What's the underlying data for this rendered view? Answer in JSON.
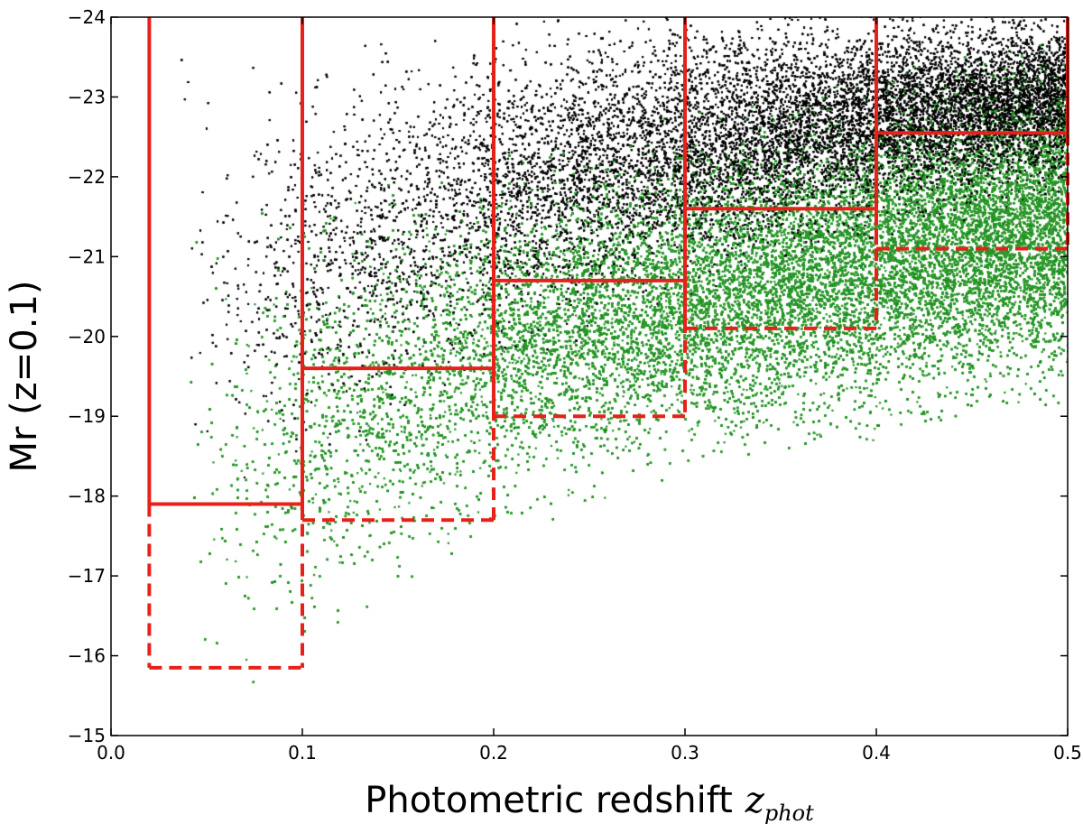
{
  "chart_data": {
    "type": "scatter",
    "xlabel": "Photometric redshift",
    "xlabel_symbol": "z",
    "xlabel_subscript": "phot",
    "ylabel": "Mr (z=0.1)",
    "xlim": [
      0.0,
      0.5
    ],
    "ylim": [
      -15,
      -24
    ],
    "y_inverted": true,
    "grid": false,
    "legend": "none",
    "x_ticks": [
      "0.0",
      "0.1",
      "0.2",
      "0.3",
      "0.4",
      "0.5"
    ],
    "x_tick_values": [
      0.0,
      0.1,
      0.2,
      0.3,
      0.4,
      0.5
    ],
    "y_ticks": [
      "−15",
      "−16",
      "−17",
      "−18",
      "−19",
      "−20",
      "−21",
      "−22",
      "−23",
      "−24"
    ],
    "y_tick_values": [
      -15,
      -16,
      -17,
      -18,
      -19,
      -20,
      -21,
      -22,
      -23,
      -24
    ],
    "colors": {
      "bright_points": "#000000",
      "faint_points": "#1f8f1f",
      "selection_lines": "#e8201a"
    },
    "series": [
      {
        "style": "black-points",
        "description_density": [
          {
            "x": 0.04,
            "ymin": -23.0,
            "ymax": -18.0
          },
          {
            "x": 0.1,
            "ymin": -23.3,
            "ymax": -18.6
          },
          {
            "x": 0.2,
            "ymin": -23.8,
            "ymax": -19.8
          },
          {
            "x": 0.3,
            "ymin": -24.0,
            "ymax": -20.8
          },
          {
            "x": 0.4,
            "ymin": -24.0,
            "ymax": -21.5
          },
          {
            "x": 0.5,
            "ymin": -24.0,
            "ymax": -22.0
          }
        ]
      },
      {
        "style": "green-points",
        "description_density": [
          {
            "x": 0.04,
            "ymin": -21.0,
            "ymax": -15.0
          },
          {
            "x": 0.1,
            "ymin": -21.5,
            "ymax": -16.3
          },
          {
            "x": 0.2,
            "ymin": -22.0,
            "ymax": -17.7
          },
          {
            "x": 0.3,
            "ymin": -22.5,
            "ymax": -18.6
          },
          {
            "x": 0.4,
            "ymin": -23.0,
            "ymax": -19.0
          },
          {
            "x": 0.5,
            "ymin": -23.5,
            "ymax": -19.5
          }
        ]
      }
    ],
    "solid_limits": [
      {
        "x0": 0.02,
        "x1": 0.1,
        "y": -17.9
      },
      {
        "x0": 0.1,
        "x1": 0.2,
        "y": -19.6
      },
      {
        "x0": 0.2,
        "x1": 0.3,
        "y": -20.7
      },
      {
        "x0": 0.3,
        "x1": 0.4,
        "y": -21.6
      },
      {
        "x0": 0.4,
        "x1": 0.5,
        "y": -22.55
      }
    ],
    "dashed_limits": [
      {
        "x0": 0.02,
        "x1": 0.1,
        "y": -15.85
      },
      {
        "x0": 0.1,
        "x1": 0.2,
        "y": -17.7
      },
      {
        "x0": 0.2,
        "x1": 0.3,
        "y": -19.0
      },
      {
        "x0": 0.3,
        "x1": 0.4,
        "y": -20.1
      },
      {
        "x0": 0.4,
        "x1": 0.5,
        "y": -21.1
      }
    ],
    "bin_edges": [
      0.02,
      0.1,
      0.2,
      0.3,
      0.4,
      0.5
    ]
  }
}
